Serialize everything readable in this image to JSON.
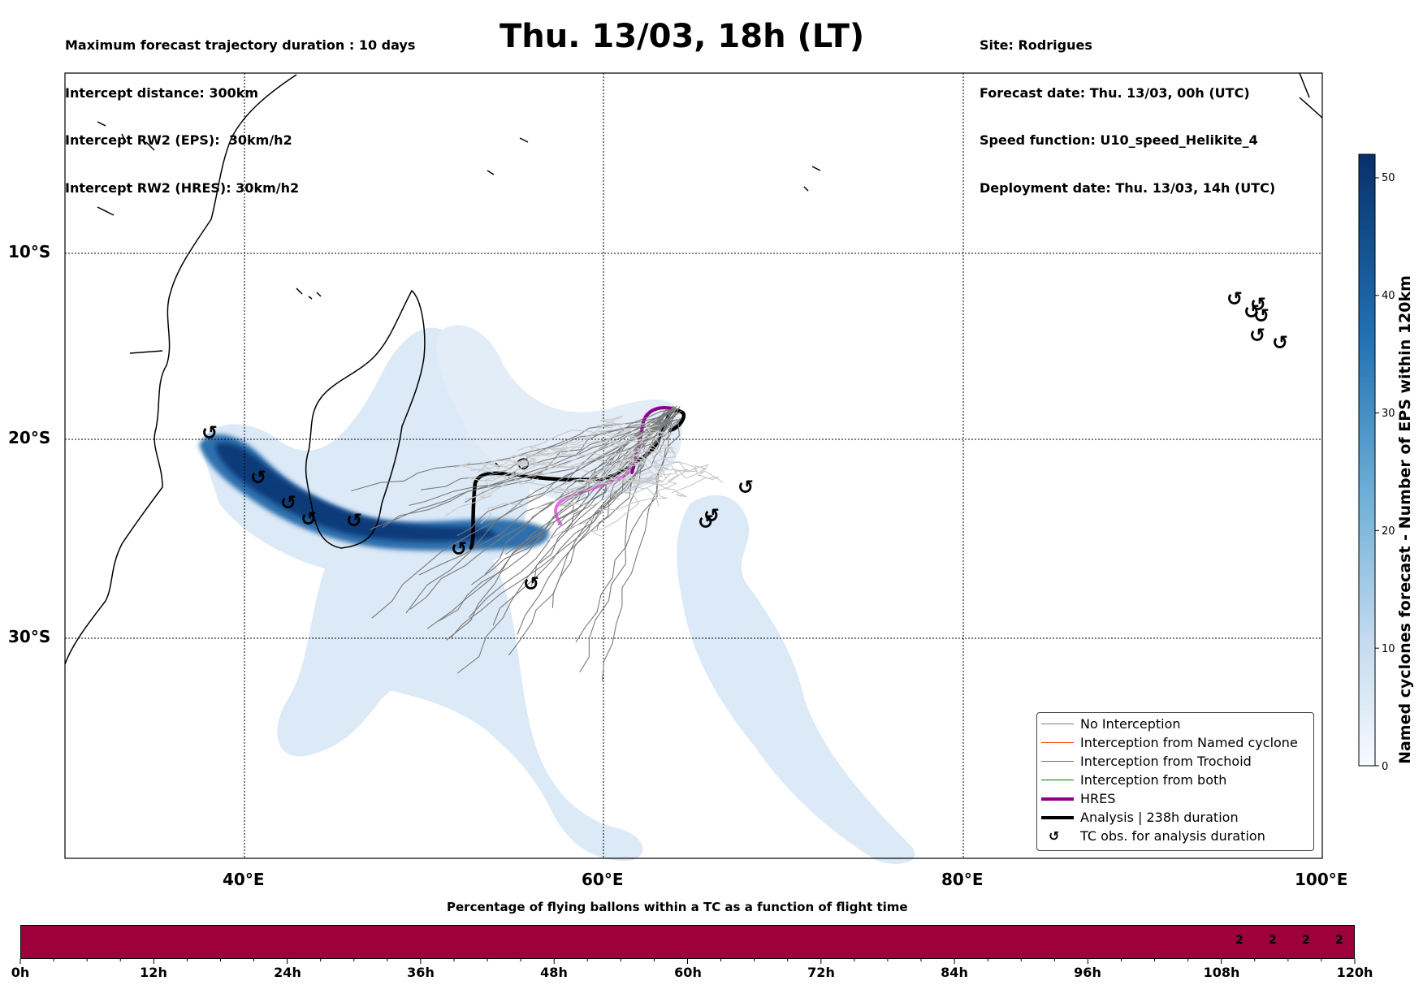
{
  "header": {
    "left_lines": [
      "Maximum forecast trajectory duration : 10 days",
      "Intercept distance: 300km",
      "Intercept RW2 (EPS):  30km/h2",
      "Intercept RW2 (HRES): 30km/h2"
    ],
    "title": "Thu. 13/03, 18h (LT)",
    "right_lines": [
      "Site: Rodrigues",
      "Forecast date: Thu. 13/03, 00h (UTC)",
      "Speed function: U10_speed_Helikite_4",
      "Deployment date: Thu. 13/03, 14h (UTC)"
    ]
  },
  "map": {
    "lat_labels": [
      "10°S",
      "20°S",
      "30°S"
    ],
    "lon_labels": [
      "40°E",
      "60°E",
      "80°E",
      "100°E"
    ],
    "colors": {
      "density_low": "#dce8f5",
      "density_high": "#08306b",
      "hres": "#8b008b",
      "hres_light": "#ee66ee",
      "analysis": "#000000",
      "no_interception": "#808080"
    },
    "tc_symbol": "tc-spiral-icon"
  },
  "colorbar": {
    "ticks": [
      "0",
      "10",
      "20",
      "30",
      "40",
      "50"
    ],
    "tick_values": [
      0,
      10,
      20,
      30,
      40,
      50
    ],
    "max": 52,
    "title": "Named cyclones forecast - Number of EPS within 120km"
  },
  "legend": {
    "items": [
      {
        "label": "No Interception",
        "color": "#808080",
        "width": 1
      },
      {
        "label": "Interception from Named cyclone",
        "color": "#ff4500",
        "width": 1
      },
      {
        "label": "Interception from Trochoid",
        "color": "#808000",
        "width": 1
      },
      {
        "label": "Interception from both",
        "color": "#008000",
        "width": 1
      },
      {
        "label": "HRES",
        "color": "#8b008b",
        "width": 3
      },
      {
        "label": "Analysis | 238h duration",
        "color": "#000000",
        "width": 3
      },
      {
        "label": "TC obs. for analysis duration",
        "color": "#000000",
        "width": 0
      }
    ]
  },
  "flight_bar": {
    "title": "Percentage of flying ballons within a TC as a function of flight time",
    "cell_values": [
      "2",
      "2",
      "2",
      "2"
    ],
    "tick_labels": [
      "0h",
      "12h",
      "24h",
      "36h",
      "48h",
      "60h",
      "72h",
      "84h",
      "96h",
      "108h",
      "120h"
    ],
    "color": "#9e003a"
  }
}
